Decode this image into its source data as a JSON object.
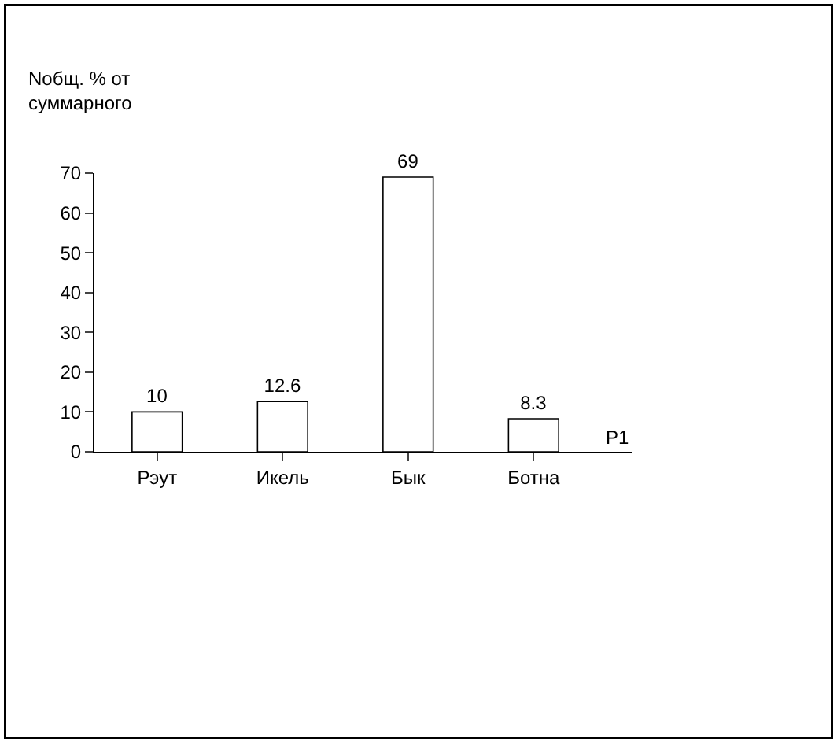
{
  "chart_data": {
    "type": "bar",
    "ylabel": "Nобщ. % от\nсуммарного",
    "categories": [
      "Рэут",
      "Икель",
      "Бык",
      "Ботна"
    ],
    "series": [
      {
        "name": "Р1",
        "color": "#ffffff",
        "values": [
          10,
          12.6,
          69,
          8.3
        ]
      }
    ],
    "ylim": [
      0,
      70
    ],
    "yticks": [
      0,
      10,
      20,
      30,
      40,
      50,
      60,
      70
    ],
    "data_labels": true
  }
}
